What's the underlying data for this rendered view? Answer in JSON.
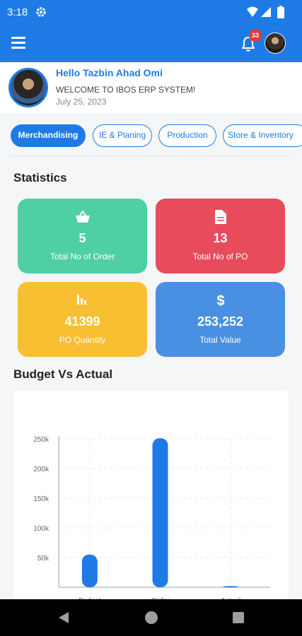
{
  "status_bar": {
    "time": "3:18"
  },
  "app_bar": {
    "notification_count": "33"
  },
  "profile": {
    "greeting": "Hello Tazbin Ahad Omi",
    "welcome": "WELCOME TO IBOS ERP SYSTEM!",
    "date": "July 25, 2023"
  },
  "tabs": [
    "Merchandising",
    "IE & Planing",
    "Production",
    "Store & Inventory"
  ],
  "statistics": {
    "title": "Statistics",
    "cards": [
      {
        "value": "5",
        "label": "Total No of Order",
        "icon": "basket-icon",
        "color": "#4fcfa3"
      },
      {
        "value": "13",
        "label": "Total No of PO",
        "icon": "document-icon",
        "color": "#e84c5c"
      },
      {
        "value": "41399",
        "label": "PO Quantity",
        "icon": "bar-chart-icon",
        "color": "#f9bf33"
      },
      {
        "value": "253,252",
        "label": "Total Value",
        "icon": "dollar-icon",
        "color": "#4a90e2"
      }
    ]
  },
  "budget_section": {
    "title": "Budget Vs Actual"
  },
  "chart_data": {
    "type": "bar",
    "categories": [
      "Budget",
      "Order",
      "Actual"
    ],
    "values": [
      55000,
      253252,
      2000
    ],
    "ylim": [
      0,
      250000
    ],
    "yticks": [
      "50k",
      "100k",
      "150k",
      "200k",
      "250k"
    ],
    "grid": true,
    "bar_color": "#1e7be6"
  }
}
